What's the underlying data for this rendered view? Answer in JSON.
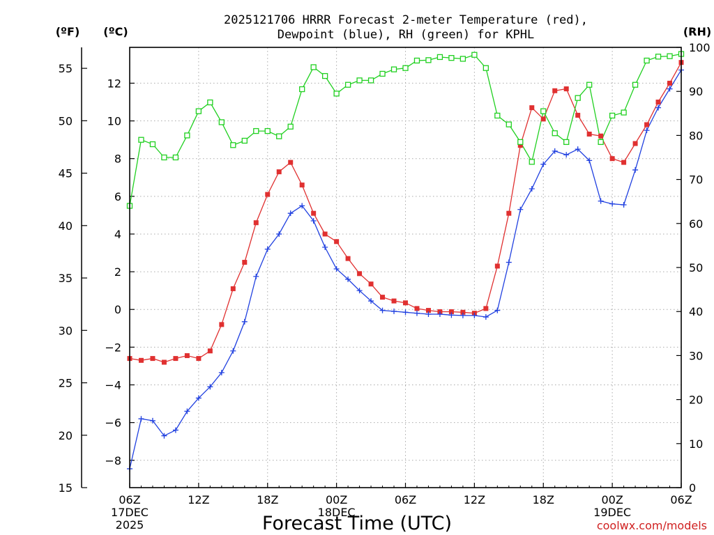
{
  "chart_data": {
    "type": "line",
    "title": [
      "2025121706 HRRR Forecast 2-meter Temperature (red),",
      "Dewpoint (blue), RH (green) for KPHL"
    ],
    "xlabel": "Forecast Time (UTC)",
    "credit": "coolwx.com/models",
    "axis_labels": {
      "left_outer": "(ºF)",
      "left_inner": "(ºC)",
      "right": "(RH)"
    },
    "grid": true,
    "xlim": [
      0,
      48
    ],
    "ylim_c": [
      -9.45,
      13.9
    ],
    "ylim_f": [
      15,
      57
    ],
    "ylim_rh": [
      0,
      100
    ],
    "yticks_c": [
      -8,
      -6,
      -4,
      -2,
      0,
      2,
      4,
      6,
      8,
      10,
      12
    ],
    "yticks_f": [
      15,
      20,
      25,
      30,
      35,
      40,
      45,
      50,
      55
    ],
    "yticks_rh": [
      0,
      10,
      20,
      30,
      40,
      50,
      60,
      70,
      80,
      90,
      100
    ],
    "xticks": [
      {
        "hour": 0,
        "lines": [
          "06Z",
          "17DEC",
          "2025"
        ]
      },
      {
        "hour": 6,
        "lines": [
          "12Z"
        ]
      },
      {
        "hour": 12,
        "lines": [
          "18Z"
        ]
      },
      {
        "hour": 18,
        "lines": [
          "00Z",
          "18DEC"
        ]
      },
      {
        "hour": 24,
        "lines": [
          "06Z"
        ]
      },
      {
        "hour": 30,
        "lines": [
          "12Z"
        ]
      },
      {
        "hour": 36,
        "lines": [
          "18Z"
        ]
      },
      {
        "hour": 42,
        "lines": [
          "00Z",
          "19DEC"
        ]
      },
      {
        "hour": 48,
        "lines": [
          "06Z"
        ]
      }
    ],
    "series": [
      {
        "name": "2-meter Temperature (°C)",
        "color": "#e03030",
        "marker": "filled-square",
        "axis": "c",
        "values": [
          -2.6,
          -2.7,
          -2.6,
          -2.8,
          -2.6,
          -2.45,
          -2.6,
          -2.2,
          -0.8,
          1.1,
          2.5,
          4.6,
          6.1,
          7.3,
          7.8,
          6.6,
          5.1,
          4.0,
          3.6,
          2.7,
          1.9,
          1.35,
          0.65,
          0.45,
          0.35,
          0.05,
          -0.05,
          -0.12,
          -0.12,
          -0.15,
          -0.2,
          0.05,
          2.3,
          5.1,
          8.7,
          10.7,
          10.1,
          11.6,
          11.7,
          10.3,
          9.3,
          9.2,
          8.0,
          7.8,
          8.8,
          9.8,
          11.0,
          12.0,
          13.1
        ]
      },
      {
        "name": "Dewpoint (°C)",
        "color": "#2040e0",
        "marker": "plus",
        "axis": "c",
        "values": [
          -8.45,
          -5.8,
          -5.9,
          -6.7,
          -6.4,
          -5.4,
          -4.7,
          -4.1,
          -3.35,
          -2.2,
          -0.65,
          1.75,
          3.2,
          4.0,
          5.1,
          5.5,
          4.7,
          3.3,
          2.15,
          1.6,
          1.0,
          0.45,
          -0.05,
          -0.1,
          -0.15,
          -0.2,
          -0.25,
          -0.25,
          -0.3,
          -0.32,
          -0.32,
          -0.4,
          -0.05,
          2.5,
          5.3,
          6.4,
          7.7,
          8.4,
          8.2,
          8.5,
          7.9,
          5.75,
          5.6,
          5.55,
          7.4,
          9.5,
          10.7,
          11.7,
          12.7
        ]
      },
      {
        "name": "Relative Humidity (%)",
        "color": "#20d020",
        "marker": "open-square",
        "axis": "rh",
        "values": [
          64,
          79,
          78,
          75,
          75,
          80,
          85.5,
          87.5,
          83,
          77.8,
          78.8,
          81,
          81,
          79.8,
          82,
          90.5,
          95.5,
          93.5,
          89.5,
          91.5,
          92.5,
          92.5,
          94,
          95,
          95.3,
          97,
          97.1,
          97.8,
          97.6,
          97.4,
          98.3,
          95.3,
          84.5,
          82.5,
          78.5,
          74,
          85.5,
          80.5,
          78.5,
          88.5,
          91.5,
          78.5,
          84.5,
          85.2,
          91.5,
          97,
          97.9,
          98,
          98.5
        ]
      }
    ]
  }
}
